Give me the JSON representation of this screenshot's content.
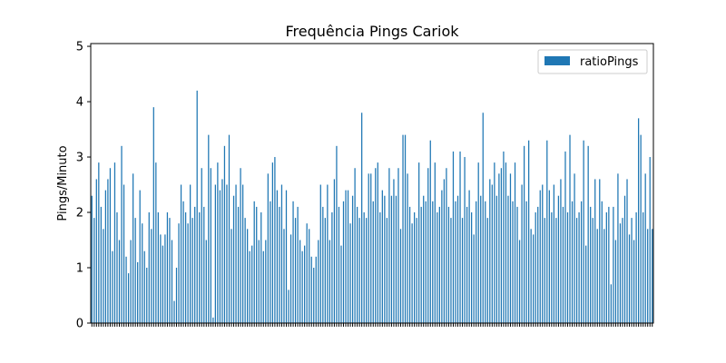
{
  "chart_data": {
    "type": "bar",
    "title": "Frequência Pings Cariok",
    "xlabel": "",
    "ylabel": "Pings/Minuto",
    "ylim": [
      0,
      5.05
    ],
    "yticks": [
      "0",
      "1",
      "2",
      "3",
      "4",
      "5"
    ],
    "legend_position": "top-right",
    "grid": false,
    "series": [
      {
        "name": "ratioPings",
        "color": "#1f77b4",
        "values": [
          2.3,
          1.9,
          2.6,
          2.9,
          2.1,
          1.7,
          2.4,
          2.6,
          2.8,
          1.3,
          2.9,
          2.0,
          1.5,
          3.2,
          2.5,
          1.2,
          0.9,
          1.5,
          2.7,
          1.9,
          1.1,
          2.4,
          1.8,
          1.3,
          1.0,
          2.0,
          1.7,
          3.9,
          2.9,
          2.0,
          1.6,
          1.4,
          1.6,
          2.0,
          1.9,
          1.5,
          0.4,
          1.0,
          1.8,
          2.5,
          2.2,
          2.0,
          1.8,
          2.5,
          1.9,
          2.1,
          4.2,
          2.0,
          2.8,
          2.1,
          1.5,
          3.4,
          2.8,
          0.1,
          2.5,
          2.9,
          2.4,
          2.6,
          3.2,
          2.5,
          3.4,
          1.7,
          2.3,
          2.5,
          2.1,
          2.8,
          2.5,
          1.9,
          1.7,
          1.3,
          1.4,
          2.2,
          2.1,
          1.5,
          2.0,
          1.3,
          1.5,
          2.7,
          2.2,
          2.9,
          3.0,
          2.4,
          2.1,
          2.5,
          1.7,
          2.4,
          0.6,
          1.6,
          2.2,
          1.9,
          2.1,
          1.5,
          1.3,
          1.4,
          1.8,
          1.7,
          1.2,
          1.0,
          1.2,
          1.5,
          2.5,
          2.1,
          1.9,
          2.5,
          1.5,
          2.0,
          2.6,
          3.2,
          2.1,
          1.4,
          2.2,
          2.4,
          2.4,
          1.8,
          2.3,
          2.8,
          2.1,
          1.9,
          3.8,
          2.0,
          1.9,
          2.7,
          2.7,
          2.2,
          2.8,
          2.9,
          2.0,
          2.4,
          2.3,
          1.9,
          2.8,
          2.3,
          2.6,
          2.3,
          2.8,
          1.7,
          3.4,
          3.4,
          2.7,
          2.1,
          1.8,
          2.0,
          1.9,
          2.9,
          2.1,
          2.3,
          2.2,
          2.8,
          3.3,
          2.2,
          2.9,
          2.0,
          2.1,
          2.4,
          2.6,
          2.8,
          2.1,
          1.9,
          3.1,
          2.2,
          2.3,
          3.1,
          1.9,
          3.0,
          2.1,
          2.4,
          2.0,
          1.6,
          2.2,
          2.9,
          2.3,
          3.8,
          2.2,
          1.9,
          2.6,
          2.5,
          2.9,
          2.3,
          2.7,
          2.8,
          3.1,
          2.9,
          2.3,
          2.7,
          2.2,
          2.9,
          2.1,
          1.5,
          2.5,
          3.2,
          2.2,
          3.3,
          1.7,
          1.6,
          2.0,
          2.1,
          2.4,
          2.5,
          1.9,
          3.3,
          2.4,
          2.0,
          2.5,
          1.9,
          2.3,
          2.6,
          2.1,
          3.1,
          2.0,
          3.4,
          2.2,
          2.7,
          1.9,
          2.0,
          2.2,
          3.3,
          1.4,
          3.2,
          2.1,
          1.9,
          2.6,
          1.7,
          2.6,
          2.2,
          1.7,
          2.0,
          2.1,
          0.7,
          2.1,
          1.5,
          2.7,
          1.8,
          1.9,
          2.3,
          2.6,
          1.6,
          1.9,
          1.5,
          2.0,
          3.7,
          3.4,
          2.0,
          2.7,
          1.7,
          3.0,
          1.7
        ]
      }
    ]
  }
}
